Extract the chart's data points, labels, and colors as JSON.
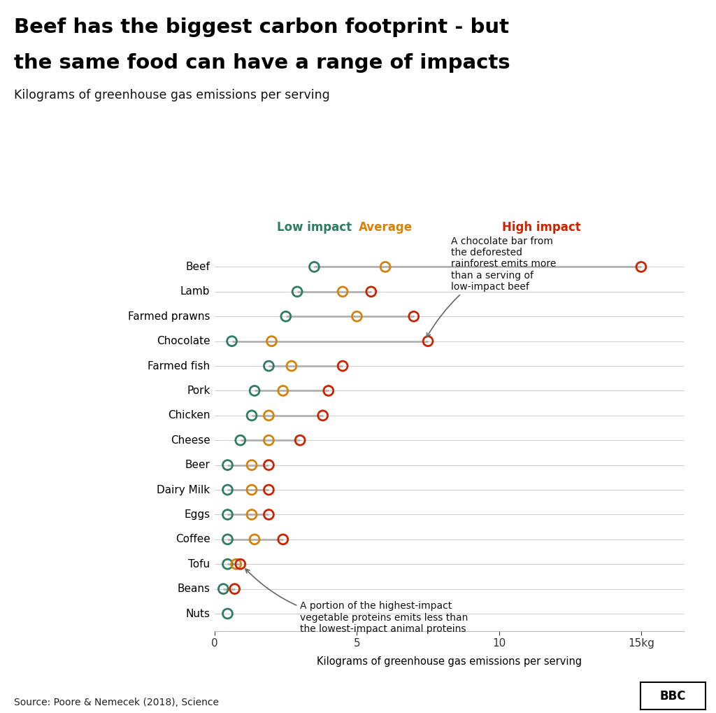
{
  "title_line1": "Beef has the biggest carbon footprint - but",
  "title_line2": "the same food can have a range of impacts",
  "subtitle": "Kilograms of greenhouse gas emissions per serving",
  "xlabel": "Kilograms of greenhouse gas emissions per serving",
  "source": "Source: Poore & Nemecek (2018), Science",
  "legend_low": "Low impact",
  "legend_avg": "Average",
  "legend_high": "High impact",
  "color_low": "#2e7d5e",
  "color_avg": "#d4820a",
  "color_high": "#cc2200",
  "color_line": "#aaaaaa",
  "foods": [
    "Beef",
    "Lamb",
    "Farmed prawns",
    "Chocolate",
    "Farmed fish",
    "Pork",
    "Chicken",
    "Cheese",
    "Beer",
    "Dairy Milk",
    "Eggs",
    "Coffee",
    "Tofu",
    "Beans",
    "Nuts"
  ],
  "low": [
    3.5,
    2.9,
    2.5,
    0.6,
    1.9,
    1.4,
    1.3,
    0.9,
    0.45,
    0.45,
    0.45,
    0.45,
    0.45,
    0.3,
    0.45
  ],
  "avg": [
    6.0,
    4.5,
    5.0,
    2.0,
    2.7,
    2.4,
    1.9,
    1.9,
    1.3,
    1.3,
    1.3,
    1.4,
    0.75,
    null,
    null
  ],
  "high": [
    15.0,
    5.5,
    7.0,
    7.5,
    4.5,
    4.0,
    3.8,
    3.0,
    1.9,
    1.9,
    1.9,
    2.4,
    0.9,
    0.7,
    null
  ],
  "xlim": [
    0,
    16.5
  ],
  "xticks": [
    0,
    5,
    10,
    15
  ],
  "xtick_labels": [
    "0",
    "5",
    "10",
    "15kg"
  ],
  "annot1_text": "A chocolate bar from\nthe deforested\nrainforest emits more\nthan a serving of\nlow-impact beef",
  "annot2_text": "A portion of the highest-impact\nvegetable proteins emits less than\nthe lowest-impact animal proteins"
}
